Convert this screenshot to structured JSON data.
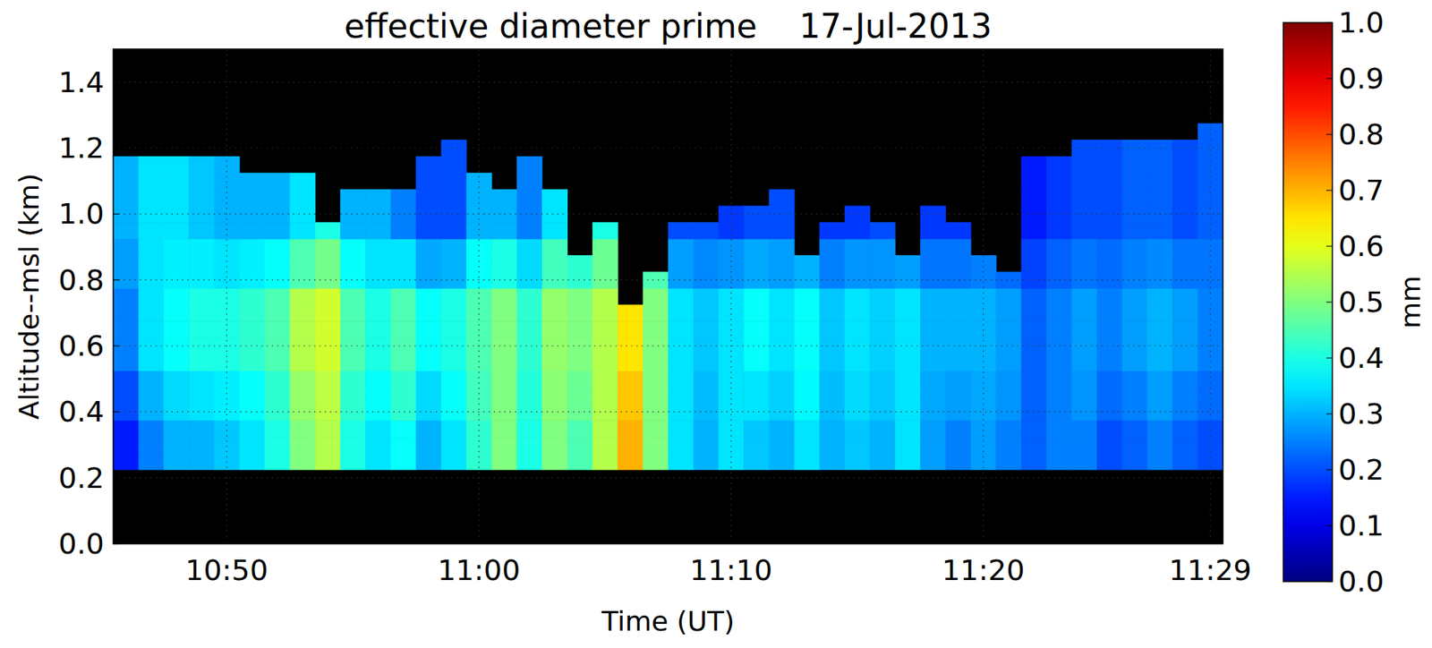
{
  "chart_data": {
    "type": "heatmap",
    "title": "effective diameter prime    17-Jul-2013",
    "x_label": "Time (UT)",
    "y_label": "Altitude--msl (km)",
    "color": "jet",
    "grid": true,
    "xlim": [
      645.5,
      689.5
    ],
    "ylim": [
      0,
      1.5
    ],
    "xticks": [
      {
        "value": 650,
        "label": "10:50"
      },
      {
        "value": 660,
        "label": "11:00"
      },
      {
        "value": 670,
        "label": "11:10"
      },
      {
        "value": 680,
        "label": "11:20"
      },
      {
        "value": 689,
        "label": "11:29"
      }
    ],
    "yticks": [
      {
        "value": 0,
        "label": "0.0"
      },
      0.2,
      0.4,
      0.6,
      0.8,
      {
        "value": 1,
        "label": "1.0"
      },
      1.2,
      1.4
    ],
    "colorbar": {
      "label": "mm",
      "range": [
        0,
        1
      ],
      "ticks": [
        {
          "value": 0,
          "label": "0.0"
        },
        0.1,
        0.2,
        0.3,
        0.4,
        0.5,
        0.6,
        0.7,
        0.8,
        0.9,
        {
          "value": 1,
          "label": "1.0"
        }
      ]
    },
    "x": [
      646,
      647,
      648,
      649,
      650,
      651,
      652,
      653,
      654,
      655,
      656,
      657,
      658,
      659,
      660,
      661,
      662,
      663,
      664,
      665,
      666,
      667,
      668,
      669,
      670,
      671,
      672,
      673,
      674,
      675,
      676,
      677,
      678,
      679,
      680,
      681,
      682,
      683,
      684,
      685,
      686,
      687,
      688,
      689
    ],
    "y": [
      0.25,
      0.3,
      0.35,
      0.4,
      0.45,
      0.5,
      0.55,
      0.6,
      0.65,
      0.7,
      0.75,
      0.8,
      0.85,
      0.9,
      0.95,
      1.0,
      1.05,
      1.1,
      1.15,
      1.2,
      1.25
    ],
    "z": [
      [
        0.15,
        0.25,
        0.3,
        0.3,
        0.32,
        0.35,
        0.4,
        0.5,
        0.55,
        0.4,
        0.35,
        0.38,
        0.3,
        0.35,
        0.42,
        0.5,
        0.4,
        0.5,
        0.45,
        0.55,
        0.7,
        0.5,
        0.35,
        0.3,
        0.35,
        0.32,
        0.3,
        0.35,
        0.3,
        0.32,
        0.3,
        0.35,
        0.28,
        0.25,
        0.28,
        0.25,
        0.22,
        0.25,
        0.25,
        0.2,
        0.22,
        0.25,
        0.22,
        0.2
      ],
      [
        0.15,
        0.25,
        0.3,
        0.3,
        0.32,
        0.35,
        0.4,
        0.5,
        0.55,
        0.4,
        0.35,
        0.38,
        0.3,
        0.35,
        0.42,
        0.5,
        0.4,
        0.5,
        0.45,
        0.55,
        0.7,
        0.5,
        0.35,
        0.3,
        0.35,
        0.32,
        0.3,
        0.35,
        0.3,
        0.32,
        0.3,
        0.35,
        0.28,
        0.25,
        0.28,
        0.25,
        0.22,
        0.25,
        0.25,
        0.2,
        0.22,
        0.25,
        0.22,
        0.2
      ],
      [
        0.15,
        0.25,
        0.3,
        0.3,
        0.32,
        0.35,
        0.4,
        0.5,
        0.55,
        0.4,
        0.35,
        0.38,
        0.3,
        0.35,
        0.42,
        0.5,
        0.4,
        0.5,
        0.45,
        0.55,
        0.7,
        0.5,
        0.35,
        0.3,
        0.35,
        0.32,
        0.3,
        0.35,
        0.3,
        0.32,
        0.3,
        0.35,
        0.28,
        0.25,
        0.28,
        0.25,
        0.22,
        0.25,
        0.25,
        0.2,
        0.22,
        0.25,
        0.22,
        0.2
      ],
      [
        0.2,
        0.3,
        0.34,
        0.35,
        0.36,
        0.38,
        0.42,
        0.52,
        0.56,
        0.42,
        0.38,
        0.42,
        0.34,
        0.38,
        0.44,
        0.5,
        0.41,
        0.51,
        0.48,
        0.55,
        0.68,
        0.5,
        0.35,
        0.31,
        0.35,
        0.35,
        0.33,
        0.37,
        0.31,
        0.34,
        0.32,
        0.35,
        0.29,
        0.28,
        0.29,
        0.27,
        0.22,
        0.25,
        0.27,
        0.23,
        0.25,
        0.28,
        0.25,
        0.23
      ],
      [
        0.2,
        0.3,
        0.34,
        0.35,
        0.36,
        0.38,
        0.42,
        0.52,
        0.56,
        0.42,
        0.38,
        0.42,
        0.34,
        0.38,
        0.44,
        0.5,
        0.41,
        0.51,
        0.48,
        0.55,
        0.68,
        0.5,
        0.35,
        0.31,
        0.35,
        0.35,
        0.33,
        0.37,
        0.31,
        0.34,
        0.32,
        0.35,
        0.29,
        0.28,
        0.29,
        0.27,
        0.22,
        0.25,
        0.27,
        0.23,
        0.25,
        0.28,
        0.25,
        0.23
      ],
      [
        0.2,
        0.3,
        0.34,
        0.35,
        0.36,
        0.38,
        0.42,
        0.52,
        0.56,
        0.42,
        0.38,
        0.42,
        0.34,
        0.38,
        0.44,
        0.5,
        0.41,
        0.51,
        0.48,
        0.55,
        0.68,
        0.5,
        0.35,
        0.31,
        0.35,
        0.35,
        0.33,
        0.37,
        0.31,
        0.34,
        0.32,
        0.35,
        0.29,
        0.28,
        0.29,
        0.27,
        0.22,
        0.25,
        0.27,
        0.23,
        0.25,
        0.28,
        0.25,
        0.23
      ],
      [
        0.25,
        0.35,
        0.38,
        0.4,
        0.4,
        0.42,
        0.45,
        0.55,
        0.58,
        0.45,
        0.4,
        0.45,
        0.38,
        0.4,
        0.45,
        0.5,
        0.42,
        0.52,
        0.5,
        0.55,
        0.65,
        0.5,
        0.35,
        0.32,
        0.35,
        0.38,
        0.35,
        0.38,
        0.32,
        0.35,
        0.33,
        0.35,
        0.3,
        0.3,
        0.3,
        0.28,
        0.22,
        0.25,
        0.28,
        0.25,
        0.28,
        0.3,
        0.28,
        0.25
      ],
      [
        0.25,
        0.35,
        0.38,
        0.4,
        0.4,
        0.42,
        0.45,
        0.55,
        0.58,
        0.45,
        0.4,
        0.45,
        0.38,
        0.4,
        0.45,
        0.5,
        0.42,
        0.52,
        0.5,
        0.55,
        0.65,
        0.5,
        0.35,
        0.32,
        0.35,
        0.38,
        0.35,
        0.38,
        0.32,
        0.35,
        0.33,
        0.35,
        0.3,
        0.3,
        0.3,
        0.28,
        0.22,
        0.25,
        0.28,
        0.25,
        0.28,
        0.3,
        0.28,
        0.25
      ],
      [
        0.25,
        0.35,
        0.38,
        0.4,
        0.4,
        0.42,
        0.45,
        0.55,
        0.58,
        0.45,
        0.4,
        0.45,
        0.38,
        0.4,
        0.45,
        0.5,
        0.42,
        0.52,
        0.5,
        0.55,
        0.65,
        0.5,
        0.35,
        0.32,
        0.35,
        0.38,
        0.35,
        0.38,
        0.32,
        0.35,
        0.33,
        0.35,
        0.3,
        0.3,
        0.3,
        0.28,
        0.22,
        0.25,
        0.28,
        0.25,
        0.28,
        0.3,
        0.28,
        0.25
      ],
      [
        0.25,
        0.35,
        0.38,
        0.4,
        0.4,
        0.42,
        0.45,
        0.55,
        0.58,
        0.45,
        0.4,
        0.45,
        0.38,
        0.4,
        0.45,
        0.5,
        0.42,
        0.52,
        0.5,
        0.55,
        0.65,
        0.5,
        0.35,
        0.32,
        0.35,
        0.38,
        0.35,
        0.38,
        0.32,
        0.35,
        0.33,
        0.35,
        0.3,
        0.3,
        0.3,
        0.28,
        0.22,
        0.25,
        0.28,
        0.25,
        0.28,
        0.3,
        0.28,
        0.25
      ],
      [
        0.25,
        0.35,
        0.38,
        0.4,
        0.4,
        0.42,
        0.45,
        0.55,
        0.58,
        0.45,
        0.4,
        0.45,
        0.38,
        0.4,
        0.45,
        0.5,
        0.42,
        0.52,
        0.5,
        0.55,
        null,
        0.5,
        0.35,
        0.32,
        0.35,
        0.38,
        0.35,
        0.38,
        0.32,
        0.35,
        0.33,
        0.35,
        0.3,
        0.3,
        0.3,
        0.28,
        0.22,
        0.25,
        0.28,
        0.25,
        0.28,
        0.3,
        0.28,
        0.25
      ],
      [
        0.28,
        0.35,
        0.36,
        0.36,
        0.35,
        0.36,
        0.38,
        0.45,
        0.49,
        0.38,
        0.35,
        0.35,
        0.29,
        0.3,
        0.38,
        0.4,
        0.34,
        0.44,
        0.42,
        0.48,
        null,
        0.45,
        0.28,
        0.26,
        0.27,
        0.29,
        0.28,
        0.3,
        0.25,
        0.27,
        0.27,
        0.28,
        0.24,
        0.24,
        0.25,
        0.23,
        0.19,
        0.22,
        0.24,
        0.23,
        0.25,
        0.26,
        0.24,
        0.24
      ],
      [
        0.28,
        0.35,
        0.36,
        0.36,
        0.35,
        0.36,
        0.38,
        0.45,
        0.49,
        0.38,
        0.35,
        0.35,
        0.29,
        0.3,
        0.38,
        0.4,
        0.34,
        0.44,
        0.42,
        0.48,
        null,
        null,
        0.28,
        0.26,
        0.27,
        0.29,
        0.28,
        0.3,
        0.25,
        0.27,
        0.27,
        0.28,
        0.24,
        0.24,
        0.25,
        null,
        0.19,
        0.22,
        0.24,
        0.23,
        0.25,
        0.26,
        0.24,
        0.24
      ],
      [
        0.28,
        0.35,
        0.36,
        0.36,
        0.35,
        0.36,
        0.38,
        0.45,
        0.49,
        0.38,
        0.35,
        0.35,
        0.29,
        0.3,
        0.38,
        0.4,
        0.34,
        0.44,
        null,
        0.48,
        null,
        null,
        0.28,
        0.26,
        0.27,
        0.29,
        0.28,
        null,
        0.25,
        0.27,
        0.27,
        null,
        0.24,
        0.24,
        null,
        null,
        0.19,
        0.22,
        0.24,
        0.23,
        0.25,
        0.26,
        0.24,
        0.24
      ],
      [
        0.3,
        0.35,
        0.35,
        0.32,
        0.3,
        0.3,
        0.3,
        0.35,
        0.4,
        0.3,
        0.3,
        0.25,
        0.2,
        0.2,
        0.3,
        0.3,
        0.25,
        0.35,
        null,
        0.4,
        null,
        null,
        0.2,
        0.2,
        0.18,
        0.2,
        0.2,
        null,
        0.18,
        0.18,
        0.2,
        null,
        0.18,
        0.18,
        null,
        null,
        0.15,
        0.18,
        0.2,
        0.2,
        0.22,
        0.22,
        0.2,
        0.22
      ],
      [
        0.3,
        0.35,
        0.35,
        0.32,
        0.3,
        0.3,
        0.3,
        0.35,
        null,
        0.3,
        0.3,
        0.25,
        0.2,
        0.2,
        0.3,
        0.3,
        0.25,
        0.35,
        null,
        null,
        null,
        null,
        null,
        null,
        0.18,
        0.2,
        0.2,
        null,
        null,
        0.18,
        null,
        null,
        0.18,
        null,
        null,
        null,
        0.15,
        0.18,
        0.2,
        0.2,
        0.22,
        0.22,
        0.2,
        0.22
      ],
      [
        0.3,
        0.35,
        0.35,
        0.32,
        0.3,
        0.3,
        0.3,
        0.35,
        null,
        0.3,
        0.3,
        0.25,
        0.2,
        0.2,
        0.3,
        0.3,
        0.25,
        0.35,
        null,
        null,
        null,
        null,
        null,
        null,
        null,
        null,
        0.2,
        null,
        null,
        null,
        null,
        null,
        null,
        null,
        null,
        null,
        0.15,
        0.18,
        0.2,
        0.2,
        0.22,
        0.22,
        0.2,
        0.22
      ],
      [
        0.3,
        0.35,
        0.35,
        0.32,
        0.3,
        0.3,
        0.3,
        0.35,
        null,
        null,
        null,
        null,
        0.2,
        0.2,
        0.3,
        null,
        0.25,
        null,
        null,
        null,
        null,
        null,
        null,
        null,
        null,
        null,
        null,
        null,
        null,
        null,
        null,
        null,
        null,
        null,
        null,
        null,
        0.15,
        0.18,
        0.2,
        0.2,
        0.22,
        0.22,
        0.2,
        0.22
      ],
      [
        0.3,
        0.35,
        0.35,
        0.32,
        0.3,
        null,
        null,
        null,
        null,
        null,
        null,
        null,
        0.2,
        0.2,
        null,
        null,
        0.25,
        null,
        null,
        null,
        null,
        null,
        null,
        null,
        null,
        null,
        null,
        null,
        null,
        null,
        null,
        null,
        null,
        null,
        null,
        null,
        0.15,
        0.18,
        0.2,
        0.2,
        0.22,
        0.22,
        0.2,
        0.22
      ],
      [
        null,
        null,
        null,
        null,
        null,
        null,
        null,
        null,
        null,
        null,
        null,
        null,
        null,
        0.2,
        null,
        null,
        null,
        null,
        null,
        null,
        null,
        null,
        null,
        null,
        null,
        null,
        null,
        null,
        null,
        null,
        null,
        null,
        null,
        null,
        null,
        null,
        null,
        null,
        0.2,
        0.2,
        0.22,
        0.22,
        0.2,
        0.22
      ],
      [
        null,
        null,
        null,
        null,
        null,
        null,
        null,
        null,
        null,
        null,
        null,
        null,
        null,
        null,
        null,
        null,
        null,
        null,
        null,
        null,
        null,
        null,
        null,
        null,
        null,
        null,
        null,
        null,
        null,
        null,
        null,
        null,
        null,
        null,
        null,
        null,
        null,
        null,
        null,
        null,
        null,
        null,
        null,
        0.22
      ]
    ]
  }
}
